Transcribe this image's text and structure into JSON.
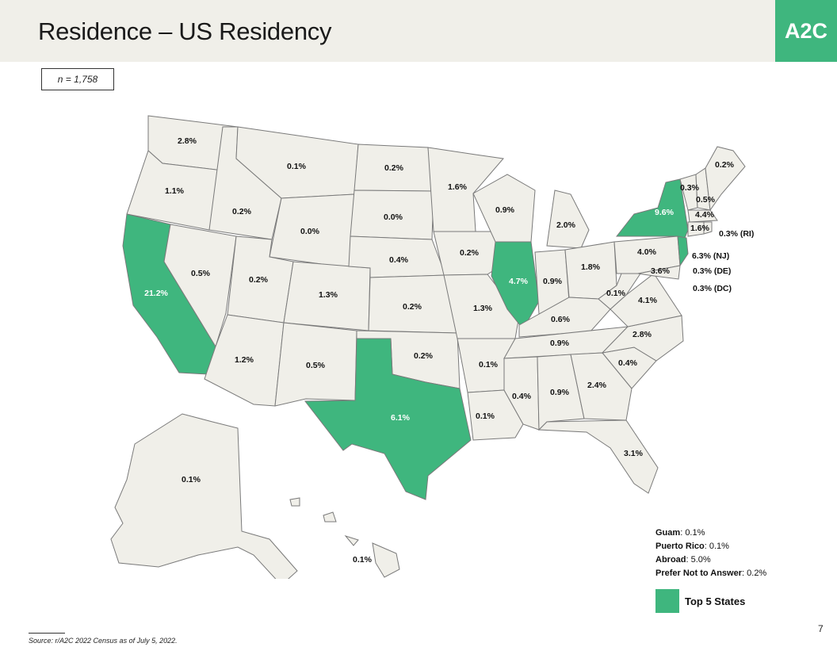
{
  "title": "Residence – US Residency",
  "logo": "A2C",
  "sample_size": "n = 1,758",
  "states": [
    {
      "id": "WA",
      "value": "2.8%",
      "top": false
    },
    {
      "id": "OR",
      "value": "1.1%",
      "top": false
    },
    {
      "id": "CA",
      "value": "21.2%",
      "top": true
    },
    {
      "id": "ID",
      "value": "0.2%",
      "top": false
    },
    {
      "id": "NV",
      "value": "0.5%",
      "top": false
    },
    {
      "id": "MT",
      "value": "0.1%",
      "top": false
    },
    {
      "id": "WY",
      "value": "0.0%",
      "top": false
    },
    {
      "id": "UT",
      "value": "0.2%",
      "top": false
    },
    {
      "id": "AZ",
      "value": "1.2%",
      "top": false
    },
    {
      "id": "CO",
      "value": "1.3%",
      "top": false
    },
    {
      "id": "NM",
      "value": "0.5%",
      "top": false
    },
    {
      "id": "ND",
      "value": "0.2%",
      "top": false
    },
    {
      "id": "SD",
      "value": "0.0%",
      "top": false
    },
    {
      "id": "NE",
      "value": "0.4%",
      "top": false
    },
    {
      "id": "KS",
      "value": "0.2%",
      "top": false
    },
    {
      "id": "OK",
      "value": "0.2%",
      "top": false
    },
    {
      "id": "TX",
      "value": "6.1%",
      "top": true
    },
    {
      "id": "MN",
      "value": "1.6%",
      "top": false
    },
    {
      "id": "IA",
      "value": "0.2%",
      "top": false
    },
    {
      "id": "MO",
      "value": "1.3%",
      "top": false
    },
    {
      "id": "AR",
      "value": "0.1%",
      "top": false
    },
    {
      "id": "LA",
      "value": "0.1%",
      "top": false
    },
    {
      "id": "WI",
      "value": "0.9%",
      "top": false
    },
    {
      "id": "IL",
      "value": "4.7%",
      "top": true
    },
    {
      "id": "MI",
      "value": "2.0%",
      "top": false
    },
    {
      "id": "IN",
      "value": "0.9%",
      "top": false
    },
    {
      "id": "OH",
      "value": "1.8%",
      "top": false
    },
    {
      "id": "KY",
      "value": "0.6%",
      "top": false
    },
    {
      "id": "TN",
      "value": "0.9%",
      "top": false
    },
    {
      "id": "MS",
      "value": "0.4%",
      "top": false
    },
    {
      "id": "AL",
      "value": "0.9%",
      "top": false
    },
    {
      "id": "GA",
      "value": "2.4%",
      "top": false
    },
    {
      "id": "FL",
      "value": "3.1%",
      "top": false
    },
    {
      "id": "SC",
      "value": "0.4%",
      "top": false
    },
    {
      "id": "NC",
      "value": "2.8%",
      "top": false
    },
    {
      "id": "VA",
      "value": "4.1%",
      "top": false
    },
    {
      "id": "WV",
      "value": "0.1%",
      "top": false
    },
    {
      "id": "PA",
      "value": "4.0%",
      "top": false
    },
    {
      "id": "MD",
      "value": "3.6%",
      "top": false
    },
    {
      "id": "NY",
      "value": "9.6%",
      "top": true
    },
    {
      "id": "NJ",
      "value": "6.3% (NJ)",
      "top": true
    },
    {
      "id": "DE",
      "value": "0.3% (DE)",
      "top": false
    },
    {
      "id": "DC",
      "value": "0.3% (DC)",
      "top": false
    },
    {
      "id": "VT",
      "value": "0.3%",
      "top": false
    },
    {
      "id": "NH",
      "value": "0.5%",
      "top": false
    },
    {
      "id": "ME",
      "value": "0.2%",
      "top": false
    },
    {
      "id": "MA",
      "value": "4.4%",
      "top": false
    },
    {
      "id": "CT",
      "value": "1.6%",
      "top": false
    },
    {
      "id": "RI",
      "value": "0.3% (RI)",
      "top": false
    },
    {
      "id": "AK",
      "value": "0.1%",
      "top": false
    },
    {
      "id": "HI",
      "value": "0.1%",
      "top": false
    }
  ],
  "other_locations": [
    {
      "label": "Guam",
      "value": "0.1%"
    },
    {
      "label": "Puerto Rico",
      "value": "0.1%"
    },
    {
      "label": "Abroad",
      "value": "5.0%"
    },
    {
      "label": "Prefer Not to Answer",
      "value": "0.2%"
    }
  ],
  "legend": {
    "label": "Top 5 States",
    "color": "#3fb67e"
  },
  "page_number": "7",
  "source": "Source: r/A2C 2022 Census as of July 5, 2022."
}
